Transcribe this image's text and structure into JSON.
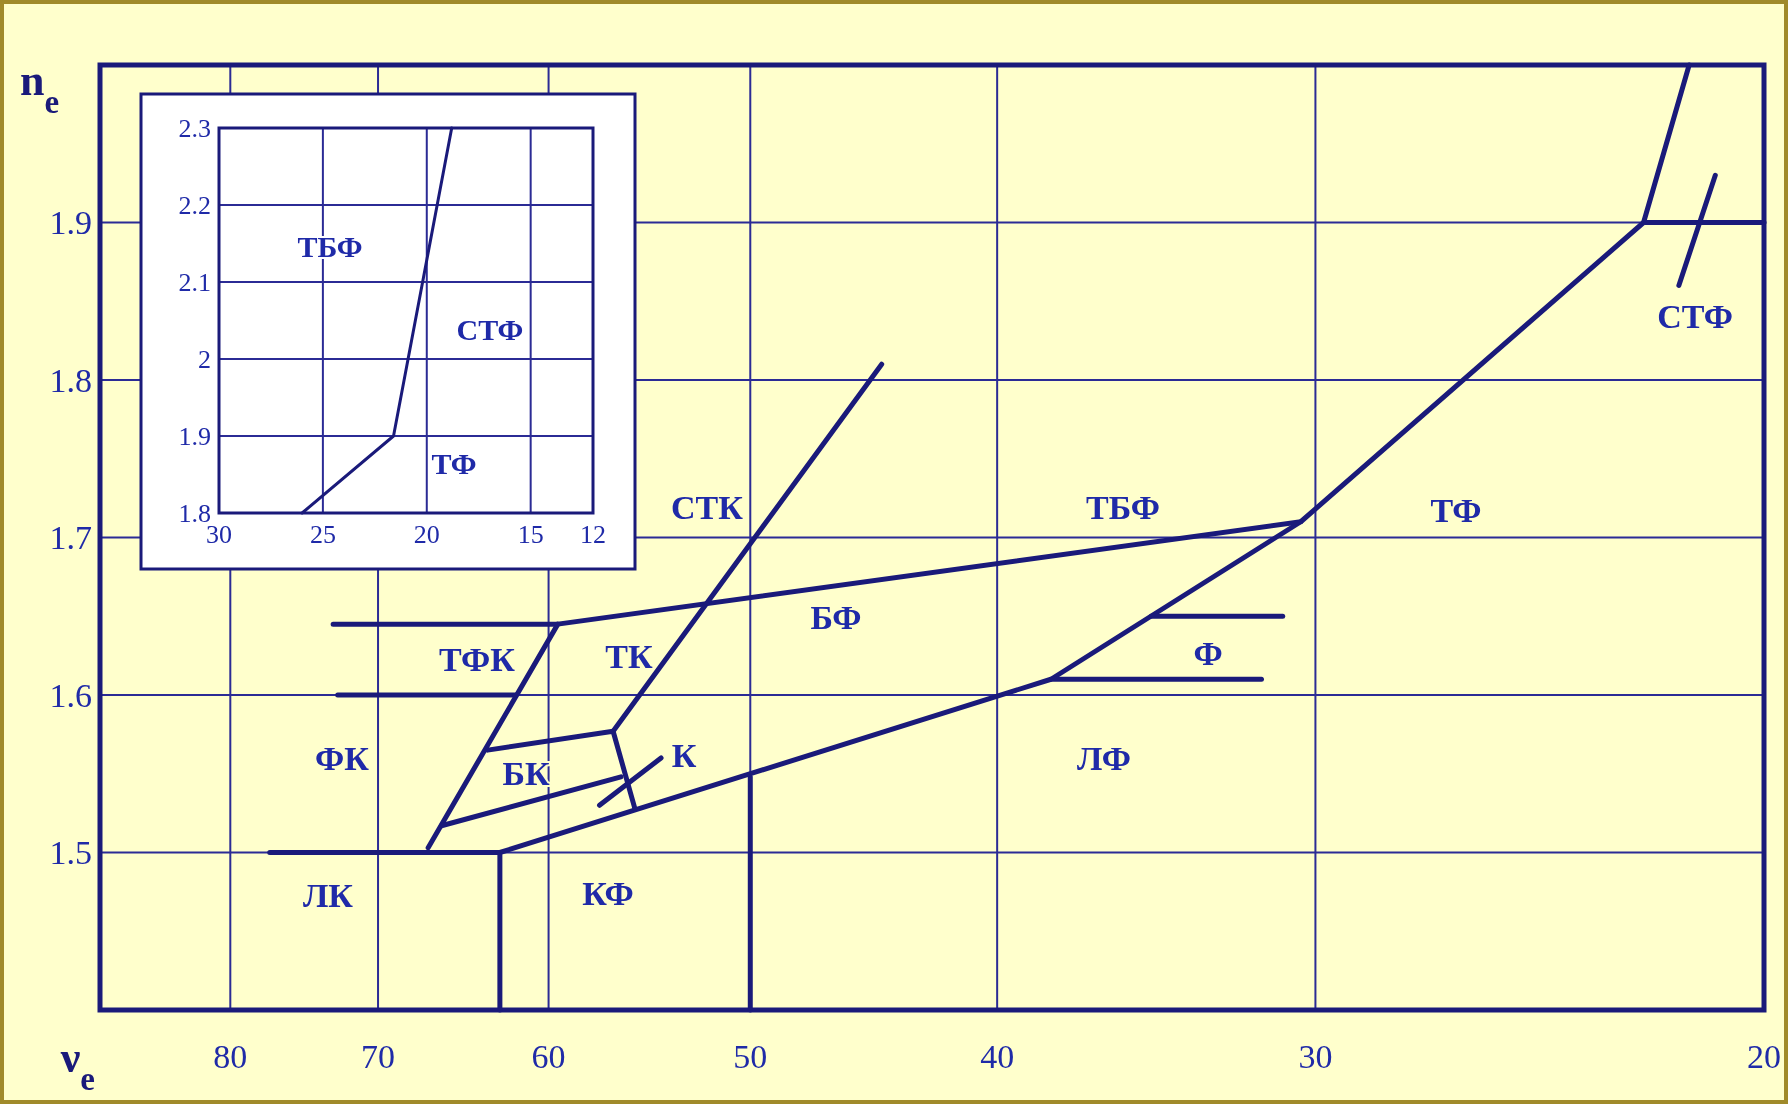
{
  "chart_data": [
    {
      "type": "line",
      "xlabel": "ν$_{e}$",
      "ylabel": "n$_{e}$",
      "log": "x",
      "xlim": [
        90,
        20
      ],
      "xticks": [
        80,
        70,
        60,
        50,
        40,
        30,
        20
      ],
      "ylim": [
        1.4,
        2.0
      ],
      "yticks": [
        1.5,
        1.6,
        1.7,
        1.8,
        1.9
      ],
      "grid": true,
      "marker": "none",
      "line_style": "solid",
      "series": [
        {
          "color": "#1a1a7a",
          "x": [
            21.4,
            22.3,
            30.4,
            38.1,
            62.7,
            62.7
          ],
          "values": [
            2.0,
            1.9,
            1.71,
            1.61,
            1.5,
            1.4
          ]
        },
        {
          "color": "#1a1a7a",
          "x": [
            22.3,
            20
          ],
          "values": [
            1.9,
            1.9
          ]
        },
        {
          "color": "#1a1a7a",
          "x": [
            20.9,
            21.6
          ],
          "values": [
            1.93,
            1.86
          ]
        },
        {
          "color": "#1a1a7a",
          "x": [
            30.4,
            59.5,
            72.9
          ],
          "values": [
            1.71,
            1.645,
            1.645
          ]
        },
        {
          "color": "#1a1a7a",
          "x": [
            44.4,
            56.6
          ],
          "values": [
            1.81,
            1.577
          ]
        },
        {
          "color": "#1a1a7a",
          "x": [
            59.5,
            66.9
          ],
          "values": [
            1.645,
            1.503
          ]
        },
        {
          "color": "#1a1a7a",
          "x": [
            77.2,
            62.7
          ],
          "values": [
            1.5,
            1.5
          ]
        },
        {
          "color": "#1a1a7a",
          "x": [
            72.6,
            61.8
          ],
          "values": [
            1.6,
            1.6
          ]
        },
        {
          "color": "#1a1a7a",
          "x": [
            63.4,
            56.6,
            55.5
          ],
          "values": [
            1.565,
            1.577,
            1.528
          ]
        },
        {
          "color": "#1a1a7a",
          "x": [
            66.1,
            56.2
          ],
          "values": [
            1.517,
            1.548
          ]
        },
        {
          "color": "#1a1a7a",
          "x": [
            57.3,
            54.2
          ],
          "values": [
            1.53,
            1.56
          ]
        },
        {
          "color": "#1a1a7a",
          "x": [
            50,
            50
          ],
          "values": [
            1.548,
            1.4
          ]
        },
        {
          "color": "#1a1a7a",
          "x": [
            34.8,
            30.9
          ],
          "values": [
            1.65,
            1.65
          ]
        },
        {
          "color": "#1a1a7a",
          "x": [
            38.1,
            31.5
          ],
          "values": [
            1.61,
            1.61
          ]
        }
      ],
      "annotations": [
        "СТК",
        "ТБФ",
        "ТФ",
        "БФ",
        "ТФК",
        "ТК",
        "К",
        "ФК",
        "БК",
        "ЛФ",
        "Ф",
        "ЛК",
        "КФ",
        "СТФ"
      ]
    },
    {
      "type": "line",
      "xlim": [
        30,
        12
      ],
      "xticks": [
        30,
        25,
        20,
        15,
        12
      ],
      "ylim": [
        1.8,
        2.3
      ],
      "yticks": [
        1.8,
        1.9,
        2.0,
        2.1,
        2.2,
        2.3
      ],
      "grid": true,
      "marker": "none",
      "line_style": "solid",
      "series": [
        {
          "color": "#1a1a7a",
          "x": [
            26.0,
            21.6,
            18.8
          ],
          "values": [
            1.8,
            1.9,
            2.3
          ]
        }
      ],
      "annotations": [
        "ТБФ",
        "СТФ",
        "ТФ"
      ]
    }
  ]
}
